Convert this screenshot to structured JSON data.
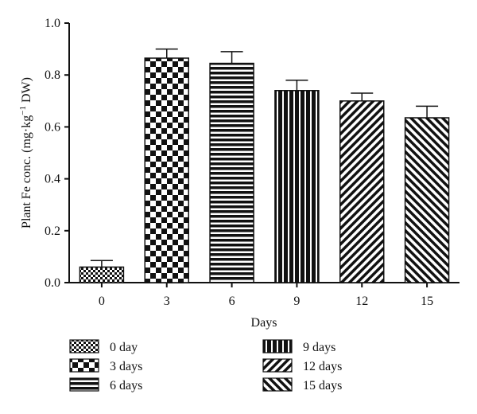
{
  "chart_data": {
    "type": "bar",
    "xlabel": "Days",
    "ylabel": "Plant Fe conc. (mg·kg",
    "ylabel_sup": "−1",
    "ylabel_tail": " DW)",
    "ylim": [
      0,
      1.0
    ],
    "yticks": [
      "0.0",
      "0.2",
      "0.4",
      "0.6",
      "0.8",
      "1.0"
    ],
    "categories": [
      "0",
      "3",
      "6",
      "9",
      "12",
      "15"
    ],
    "values": [
      0.06,
      0.865,
      0.845,
      0.74,
      0.7,
      0.635
    ],
    "errors": [
      0.025,
      0.035,
      0.045,
      0.04,
      0.03,
      0.045
    ],
    "patterns": [
      "small-checker",
      "checker",
      "horizontal",
      "vertical",
      "diag-up",
      "diag-down"
    ],
    "legend": [
      "0 day",
      "3 days",
      "6 days",
      "9 days",
      "12 days",
      "15 days"
    ],
    "grid": false
  }
}
